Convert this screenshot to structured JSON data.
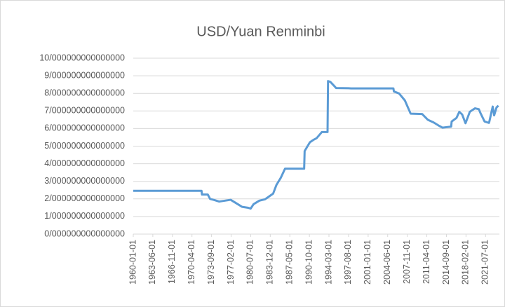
{
  "chart_data": {
    "type": "line",
    "title": "USD/Yuan Renminbi",
    "x": [
      "1960-01-01",
      "1971-12-01",
      "1972-01-01",
      "1973-01-01",
      "1973-06-01",
      "1974-01-01",
      "1975-01-01",
      "1976-01-01",
      "1977-01-01",
      "1978-01-01",
      "1979-01-01",
      "1980-01-01",
      "1980-07-01",
      "1981-01-01",
      "1982-01-01",
      "1983-01-01",
      "1984-06-01",
      "1985-01-01",
      "1985-10-01",
      "1986-07-01",
      "1989-11-01",
      "1989-12-01",
      "1990-11-01",
      "1991-06-01",
      "1992-01-01",
      "1992-12-01",
      "1993-12-01",
      "1994-01-01",
      "1994-06-01",
      "1995-01-01",
      "1995-06-01",
      "1997-08-01",
      "1998-01-01",
      "2005-06-01",
      "2005-07-01",
      "2006-06-01",
      "2007-06-01",
      "2008-06-01",
      "2010-06-01",
      "2011-06-01",
      "2012-06-01",
      "2013-06-01",
      "2014-01-01",
      "2015-07-01",
      "2015-08-01",
      "2016-06-01",
      "2016-12-01",
      "2017-06-01",
      "2018-01-01",
      "2018-10-01",
      "2019-09-01",
      "2020-05-01",
      "2020-08-01",
      "2021-05-01",
      "2022-02-01",
      "2022-03-01",
      "2022-10-01",
      "2023-01-01",
      "2023-06-01",
      "2023-10-01"
    ],
    "series": [
      {
        "name": "USD/Yuan Renminbi",
        "color": "#5b9bd5",
        "values": [
          2.46,
          2.46,
          2.25,
          2.25,
          2.0,
          1.95,
          1.85,
          1.9,
          1.95,
          1.75,
          1.55,
          1.5,
          1.45,
          1.7,
          1.9,
          1.98,
          2.3,
          2.8,
          3.2,
          3.72,
          3.72,
          4.72,
          5.22,
          5.35,
          5.45,
          5.8,
          5.8,
          8.7,
          8.65,
          8.45,
          8.3,
          8.29,
          8.28,
          8.28,
          8.11,
          7.99,
          7.6,
          6.85,
          6.83,
          6.5,
          6.35,
          6.15,
          6.05,
          6.11,
          6.4,
          6.6,
          6.95,
          6.8,
          6.3,
          6.95,
          7.15,
          7.1,
          6.9,
          6.4,
          6.32,
          6.4,
          7.25,
          6.75,
          7.2,
          7.3
        ]
      }
    ],
    "xlim": [
      "1960-01-01",
      "2023-12-01"
    ],
    "xticks": [
      "1960-01-01",
      "1963-06-01",
      "1966-11-01",
      "1970-04-01",
      "1973-09-01",
      "1977-02-01",
      "1980-07-01",
      "1983-12-01",
      "1987-05-01",
      "1990-10-01",
      "1994-03-01",
      "1997-08-01",
      "2001-01-01",
      "2004-06-01",
      "2007-11-01",
      "2011-04-01",
      "2014-09-01",
      "2018-02-01",
      "2021-07-01"
    ],
    "ylim": [
      0,
      10
    ],
    "yticks": [
      {
        "value": 0,
        "label": "0/000000000000000"
      },
      {
        "value": 1,
        "label": "1/000000000000000"
      },
      {
        "value": 2,
        "label": "2/000000000000000"
      },
      {
        "value": 3,
        "label": "3/000000000000000"
      },
      {
        "value": 4,
        "label": "4/000000000000000"
      },
      {
        "value": 5,
        "label": "5/000000000000000"
      },
      {
        "value": 6,
        "label": "6/000000000000000"
      },
      {
        "value": 7,
        "label": "7/000000000000000"
      },
      {
        "value": 8,
        "label": "8/000000000000000"
      },
      {
        "value": 9,
        "label": "9/000000000000000"
      },
      {
        "value": 10,
        "label": "10/000000000000000"
      }
    ],
    "grid": true
  }
}
